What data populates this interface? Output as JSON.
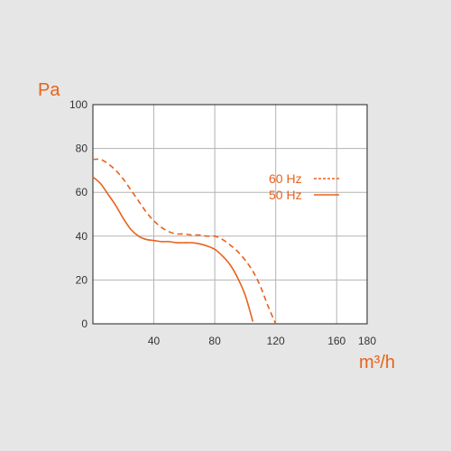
{
  "chart_data": {
    "type": "line",
    "xlabel": "m³/h",
    "ylabel": "Pa",
    "xlim": [
      0,
      180
    ],
    "ylim": [
      0,
      100
    ],
    "x_ticks": [
      "40",
      "80",
      "120",
      "160",
      "180"
    ],
    "y_ticks": [
      "0",
      "20",
      "40",
      "60",
      "80",
      "100"
    ],
    "x_tick_values": [
      40,
      80,
      120,
      160,
      180
    ],
    "y_tick_values": [
      0,
      20,
      40,
      60,
      80,
      100
    ],
    "grid": true,
    "legend_position": "right",
    "series": [
      {
        "name": "60 Hz",
        "style": "dashed",
        "color": "#e8621a",
        "x": [
          0,
          5,
          10,
          15,
          20,
          25,
          30,
          35,
          40,
          45,
          50,
          55,
          60,
          65,
          70,
          75,
          80,
          85,
          90,
          95,
          100,
          105,
          110,
          115,
          120
        ],
        "y": [
          75,
          75,
          73,
          70,
          66,
          61,
          56,
          51,
          47,
          44,
          42,
          41,
          41,
          40.5,
          40.5,
          40,
          40,
          38.5,
          36,
          33,
          29,
          24,
          17,
          8,
          0
        ]
      },
      {
        "name": "50 Hz",
        "style": "solid",
        "color": "#e8621a",
        "x": [
          0,
          5,
          10,
          15,
          20,
          25,
          30,
          35,
          40,
          45,
          50,
          55,
          60,
          65,
          70,
          75,
          80,
          85,
          90,
          95,
          100,
          105
        ],
        "y": [
          67,
          64,
          59,
          54,
          48,
          43,
          40,
          38.5,
          38,
          37.5,
          37.5,
          37,
          37,
          37,
          36.5,
          35.5,
          34,
          31,
          27,
          21,
          13,
          1
        ]
      }
    ]
  }
}
